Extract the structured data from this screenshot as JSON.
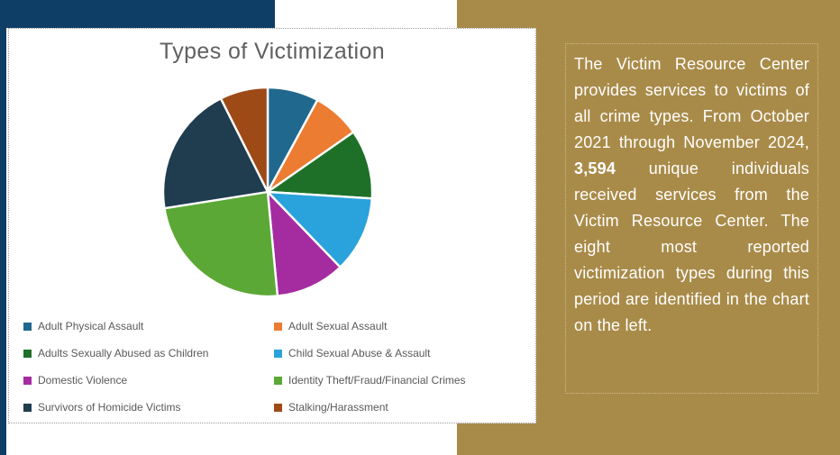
{
  "theme": {
    "navy_accent": "#0e3e66",
    "gold_panel": "#a98b49",
    "card_border_gray": "#9a9a9a",
    "legend_text_gray": "#595959",
    "title_gray": "#606060",
    "panel_text": "#ffffff"
  },
  "chart_data": {
    "type": "pie",
    "title": "Types of Victimization",
    "legend_position": "bottom",
    "direction": "clockwise",
    "start_angle_deg": 0,
    "values_are": "estimated percent of whole (no data labels shown in chart)",
    "slices": [
      {
        "label": "Adult Physical Assault",
        "value": 7.9,
        "color": "#21688e"
      },
      {
        "label": "Adult Sexual Assault",
        "value": 7.4,
        "color": "#ec7c31"
      },
      {
        "label": "Adults Sexually Abused as Children",
        "value": 10.7,
        "color": "#1e7029"
      },
      {
        "label": "Child Sexual Abuse & Assault",
        "value": 11.8,
        "color": "#2aa2db"
      },
      {
        "label": "Domestic Violence",
        "value": 10.7,
        "color": "#a52ca0"
      },
      {
        "label": "Identity Theft/Fraud/Financial Crimes",
        "value": 24.0,
        "color": "#5ca836"
      },
      {
        "label": "Survivors of Homicide Victims",
        "value": 20.1,
        "color": "#203c4f"
      },
      {
        "label": "Stalking/Harassment",
        "value": 7.4,
        "color": "#9d4a17"
      }
    ]
  },
  "right_panel": {
    "text_before": "The Victim Resource Center provides services to victims of all crime types. From October 2021 through November 2024, ",
    "text_bold": "3,594",
    "text_after": " unique individuals received services from the Victim Resource Center. The eight most reported victimization types during this period are identified in the chart on the left."
  }
}
